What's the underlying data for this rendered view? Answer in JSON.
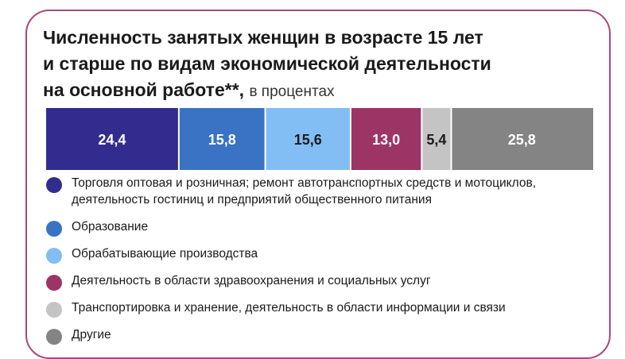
{
  "title": {
    "line1": "Численность занятых женщин в возрасте 15 лет",
    "line2": "и старше по видам экономической деятельности",
    "line3": "на основной работе**,",
    "unit": "в процентах"
  },
  "chart_data": {
    "type": "bar",
    "stacked": true,
    "orientation": "horizontal",
    "total": 100,
    "series": [
      {
        "name": "Торговля оптовая и розничная; ремонт автотранспортных средств и мотоциклов, деятельность гостиниц и предприятий общественного питания",
        "value": 24.4,
        "label": "24,4",
        "color": "#332c8f"
      },
      {
        "name": "Образование",
        "value": 15.8,
        "label": "15,8",
        "color": "#3a72c4"
      },
      {
        "name": "Обрабатывающие производства",
        "value": 15.6,
        "label": "15,6",
        "color": "#82bdf3"
      },
      {
        "name": "Деятельность в области здравоохранения и социальных услуг",
        "value": 13.0,
        "label": "13,0",
        "color": "#9c3566"
      },
      {
        "name": "Транспортировка и хранение, деятельность в области информации и связи",
        "value": 5.4,
        "label": "5,4",
        "color": "#c4c4c4"
      },
      {
        "name": "Другие",
        "value": 25.8,
        "label": "25,8",
        "color": "#848484"
      }
    ],
    "label_color_light": "#ffffff",
    "label_color_dark": "#1a1a1a"
  }
}
